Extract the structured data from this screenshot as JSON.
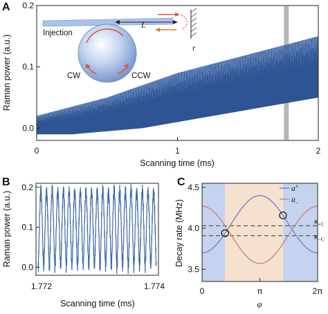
{
  "panels": {
    "A": {
      "letter": "A"
    },
    "B": {
      "letter": "B"
    },
    "C": {
      "letter": "C"
    }
  },
  "inset": {
    "injection_label": "Injection",
    "cw_label": "CW",
    "ccw_label": "CCW",
    "length_symbol": "L",
    "reflector_symbol": "r"
  },
  "colors": {
    "signal": "#3f67a8",
    "highlight": "#9aa0a6",
    "a_plus": "#7f86c9",
    "a_minus": "#c98a86",
    "region_blue": "#c5d3ee",
    "region_peach": "#f6e1cf",
    "arrow_red": "#e0533f",
    "arrow_orange": "#d87a2e"
  },
  "chart_data": [
    {
      "panel": "A",
      "type": "line",
      "xlabel": "Scanning time (ms)",
      "ylabel": "Raman power (a.u.)",
      "xlim": [
        0,
        2
      ],
      "ylim": [
        -0.02,
        0.2
      ],
      "xticks": [
        "0",
        "1",
        "2"
      ],
      "yticks": [
        "0.0",
        "0.1",
        "0.2"
      ],
      "series": [
        {
          "x": [
            0.0,
            0.25,
            0.5,
            0.75,
            1.0,
            1.25,
            1.5,
            1.75,
            2.0
          ],
          "lower": [
            -0.01,
            -0.01,
            -0.005,
            0.0,
            0.01,
            0.02,
            0.03,
            0.04,
            0.05
          ],
          "upper": [
            0.02,
            0.035,
            0.05,
            0.07,
            0.09,
            0.105,
            0.12,
            0.135,
            0.15
          ]
        }
      ],
      "highlight_x": 1.773
    },
    {
      "panel": "B",
      "type": "line",
      "xlabel": "Scanning time (ms)",
      "ylabel": "Raman power (a.u.)",
      "xlim": [
        1.772,
        1.774
      ],
      "ylim": [
        -0.02,
        0.21
      ],
      "xticks": [
        "1.772",
        "1.774"
      ],
      "yticks": [
        "0.0",
        "0.1",
        "0.2"
      ],
      "series": [
        {
          "cycles": 21,
          "min": 0.0,
          "max": 0.19
        }
      ]
    },
    {
      "panel": "C",
      "type": "line",
      "xlabel": "φ",
      "ylabel": "Decay rate (MHz)",
      "xlim": [
        0,
        6.283
      ],
      "ylim": [
        3.35,
        4.55
      ],
      "xticks": [
        "0",
        "π",
        "2π"
      ],
      "yticks": [
        "3.5",
        "4.0",
        "4.5"
      ],
      "series": [
        {
          "name": "a+",
          "legend_main": "a",
          "legend_sub": "+",
          "mean": 4.05,
          "amplitude": -0.35
        },
        {
          "name": "a−",
          "legend_main": "a",
          "legend_sub": "−",
          "mean": 3.92,
          "amplitude": 0.35
        }
      ],
      "reference_lines": [
        {
          "label_main": "κ",
          "label_sub": "+C",
          "value": 4.03
        },
        {
          "label_main": "κ",
          "label_sub": "−C",
          "value": 3.91
        }
      ],
      "crossings_x": [
        1.25,
        4.4
      ],
      "regions": [
        {
          "from": 0.0,
          "to": 1.25,
          "color": "blue"
        },
        {
          "from": 1.25,
          "to": 4.4,
          "color": "peach"
        },
        {
          "from": 4.4,
          "to": 6.283,
          "color": "blue"
        }
      ]
    }
  ]
}
